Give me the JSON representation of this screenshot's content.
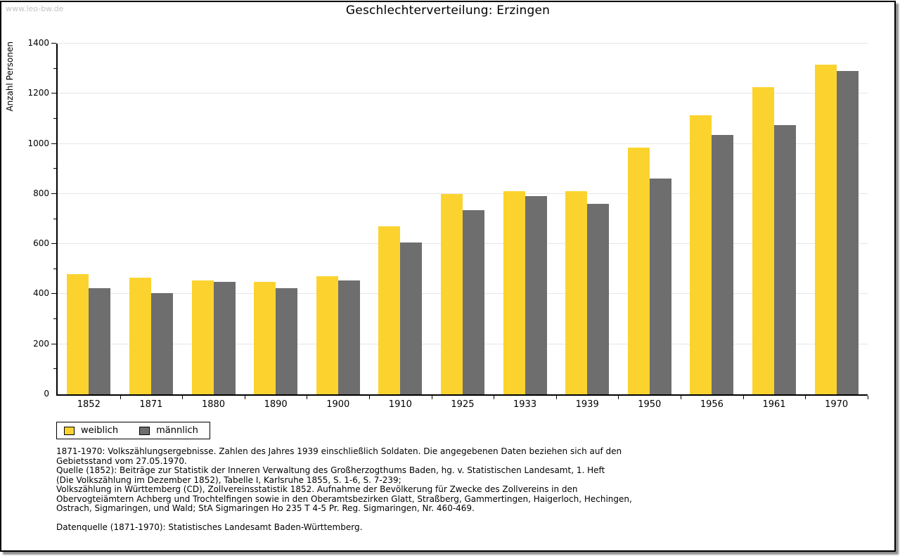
{
  "watermark": "www.leo-bw.de",
  "chart_data": {
    "type": "bar",
    "title": "Geschlechterverteilung: Erzingen",
    "ylabel": "Anzahl Personen",
    "xlabel": "",
    "categories": [
      "1852",
      "1871",
      "1880",
      "1890",
      "1900",
      "1910",
      "1925",
      "1933",
      "1939",
      "1950",
      "1956",
      "1961",
      "1970"
    ],
    "series": [
      {
        "name": "weiblich",
        "color": "#fcd32e",
        "values": [
          480,
          465,
          455,
          450,
          470,
          670,
          800,
          810,
          810,
          985,
          1115,
          1225,
          1315
        ]
      },
      {
        "name": "männlich",
        "color": "#6e6e6e",
        "values": [
          425,
          405,
          450,
          425,
          455,
          605,
          735,
          790,
          760,
          860,
          1035,
          1075,
          1290
        ]
      }
    ],
    "ylim": [
      0,
      1400
    ],
    "ytick_step": 200,
    "yminor_step": 100,
    "grid": "horizontal-major",
    "gridline_color": "#e6e6e6",
    "legend_position": "bottom-left"
  },
  "footnote": {
    "lines": [
      "1871-1970: Volkszählungsergebnisse. Zahlen des Jahres 1939 einschließlich Soldaten. Die angegebenen Daten beziehen sich auf den",
      "Gebietsstand vom 27.05.1970.",
      "Quelle (1852): Beiträge zur Statistik der Inneren Verwaltung des Großherzogthums Baden, hg. v. Statistischen Landesamt, 1. Heft",
      "(Die Volkszählung im Dezember 1852), Tabelle I, Karlsruhe 1855, S. 1-6, S. 7-239;",
      "Volkszählung in Württemberg (CD), Zollvereinsstatistik 1852. Aufnahme der Bevölkerung für Zwecke des Zollvereins in den",
      "Obervogteiämtern Achberg und Trochtelfingen sowie in den Oberamtsbezirken Glatt, Straßberg, Gammertingen, Haigerloch, Hechingen,",
      "Ostrach, Sigmaringen, und Wald; StA Sigmaringen Ho 235 T 4-5 Pr. Reg. Sigmaringen, Nr. 460-469.",
      "",
      "Datenquelle (1871-1970): Statistisches Landesamt Baden-Württemberg."
    ]
  }
}
